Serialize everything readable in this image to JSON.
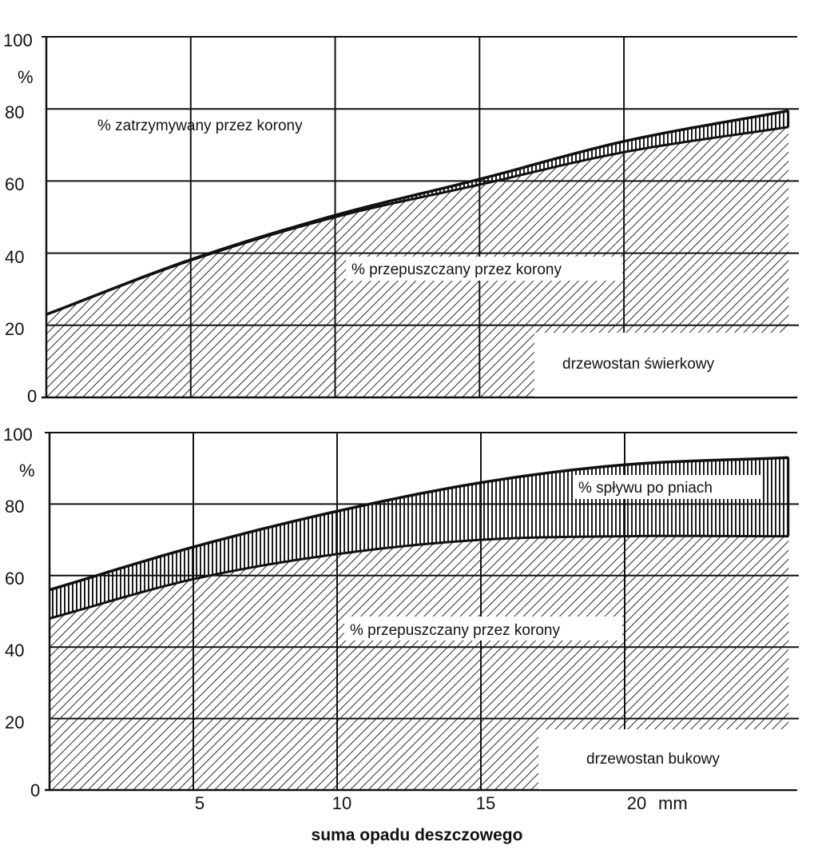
{
  "chart_data": [
    {
      "type": "area",
      "ylim": [
        0,
        100
      ],
      "xlim": [
        0,
        26
      ],
      "y_ticks": [
        "0",
        "20",
        "40",
        "60",
        "80",
        "100"
      ],
      "y_unit": "%",
      "x": [
        0,
        5,
        10,
        15,
        20,
        25.7
      ],
      "series": [
        {
          "name": "% przepuszczany przez korony",
          "values": [
            23,
            38,
            50,
            59,
            68,
            75
          ]
        },
        {
          "values": [
            0,
            0.2,
            0.5,
            1.5,
            3,
            4.5
          ]
        },
        {
          "name": "% zatrzymywany przez korony",
          "values": [
            77,
            62,
            50,
            40,
            29,
            21
          ]
        }
      ],
      "box_label": "drzewostan świerkowy",
      "grid": true
    },
    {
      "type": "area",
      "ylim": [
        0,
        100
      ],
      "xlim": [
        0,
        26
      ],
      "y_ticks": [
        "0",
        "20",
        "40",
        "60",
        "80",
        "100"
      ],
      "y_unit": "%",
      "x": [
        0,
        5,
        10,
        15,
        20,
        25.7
      ],
      "x_ticks": [
        "5",
        "10",
        "15",
        "20"
      ],
      "x_unit": "mm",
      "xlabel": "suma opadu deszczowego",
      "series": [
        {
          "name": "% przepuszczany przez korony",
          "values": [
            48,
            59,
            66,
            70,
            71,
            71
          ]
        },
        {
          "name": "% spływu po pniach",
          "values": [
            8,
            9,
            12,
            16,
            20,
            22
          ]
        }
      ],
      "box_label": "drzewostan bukowy",
      "grid": true
    }
  ]
}
